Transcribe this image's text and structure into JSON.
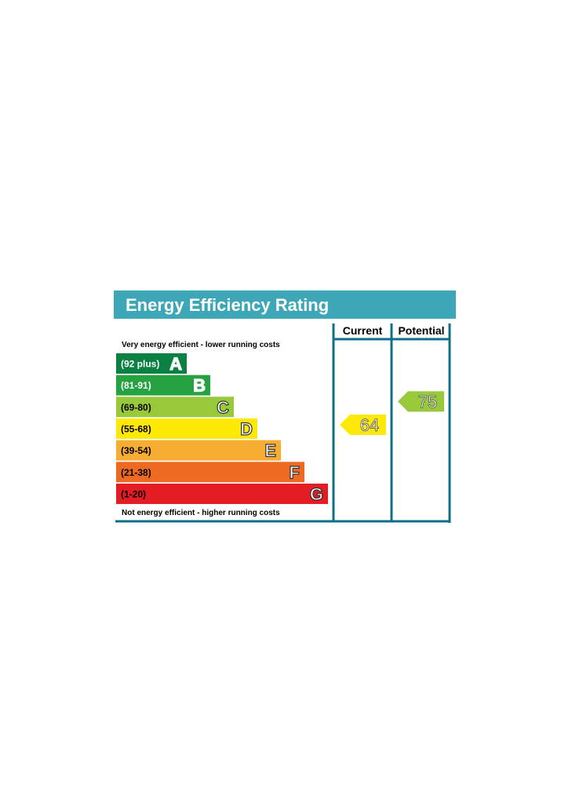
{
  "title": "Energy Efficiency Rating",
  "columns": {
    "current": "Current",
    "potential": "Potential"
  },
  "notes": {
    "top": "Very energy efficient - lower running costs",
    "bottom": "Not energy efficient - higher running costs"
  },
  "colors": {
    "header": "#3ea7b7",
    "frame": "#0f6e8c"
  },
  "chart_data": {
    "type": "bar",
    "title": "Energy Efficiency Rating",
    "bands": [
      {
        "letter": "A",
        "range": "(92 plus)",
        "color": "#0a8043",
        "text": "#ffffff"
      },
      {
        "letter": "B",
        "range": "(81-91)",
        "color": "#27a243",
        "text": "#ffffff"
      },
      {
        "letter": "C",
        "range": "(69-80)",
        "color": "#98c93b",
        "text": "#000000"
      },
      {
        "letter": "D",
        "range": "(55-68)",
        "color": "#fde905",
        "text": "#000000"
      },
      {
        "letter": "E",
        "range": "(39-54)",
        "color": "#f6ad31",
        "text": "#000000"
      },
      {
        "letter": "F",
        "range": "(21-38)",
        "color": "#ee6a23",
        "text": "#000000"
      },
      {
        "letter": "G",
        "range": "(1-20)",
        "color": "#e31d23",
        "text": "#000000"
      }
    ],
    "current": {
      "value": 64,
      "band": "D",
      "color": "#fde905"
    },
    "potential": {
      "value": 75,
      "band": "C",
      "color": "#98c93b"
    }
  }
}
